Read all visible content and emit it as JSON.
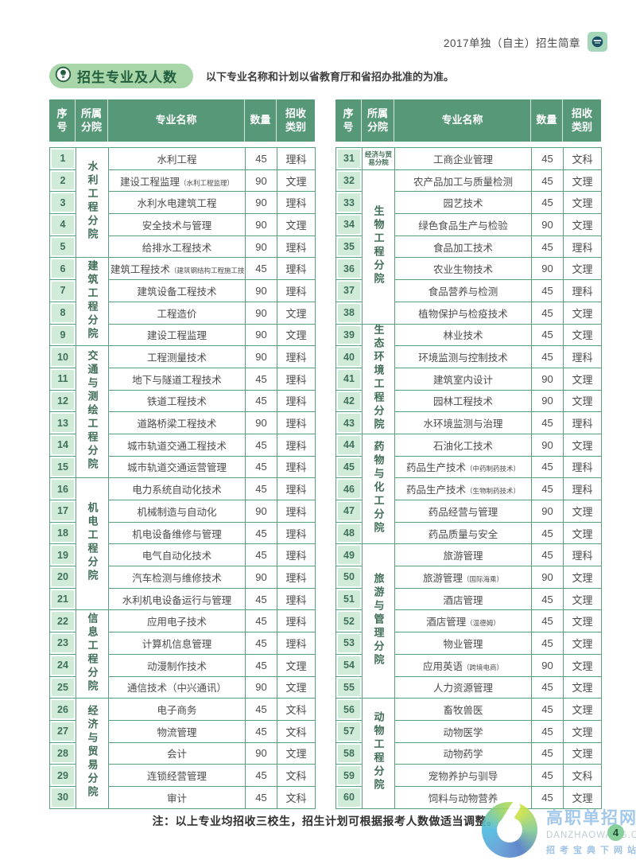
{
  "header": {
    "title": "2017单独（自主）招生简章"
  },
  "section": {
    "title": "招生专业及人数",
    "note": "以下专业名称和计划以省教育厅和省招办批准的为准。"
  },
  "table_headers": [
    "序\n号",
    "所属\n分院",
    "专业名称",
    "数量",
    "招收\n类别"
  ],
  "tables": [
    {
      "groups": [
        {
          "department": "水利工程分院",
          "rows": [
            {
              "no": "1",
              "major": "水利工程",
              "count": "45",
              "category": "理科"
            },
            {
              "no": "2",
              "major": "建设工程监理",
              "sub": "（水利工程监理）",
              "count": "90",
              "category": "文理"
            },
            {
              "no": "3",
              "major": "水利水电建筑工程",
              "count": "90",
              "category": "理科"
            },
            {
              "no": "4",
              "major": "安全技术与管理",
              "count": "90",
              "category": "文理"
            },
            {
              "no": "5",
              "major": "给排水工程技术",
              "count": "90",
              "category": "理科"
            }
          ]
        },
        {
          "department": "建筑工程分院",
          "rows": [
            {
              "no": "6",
              "major": "建筑工程技术",
              "sub": "（建筑钢结构工程施工技术）",
              "count": "45",
              "category": "理科"
            },
            {
              "no": "7",
              "major": "建筑设备工程技术",
              "count": "90",
              "category": "理科"
            },
            {
              "no": "8",
              "major": "工程造价",
              "count": "90",
              "category": "文理"
            },
            {
              "no": "9",
              "major": "建设工程监理",
              "count": "90",
              "category": "文理"
            }
          ]
        },
        {
          "department": "交通与测绘工程分院",
          "rows": [
            {
              "no": "10",
              "major": "工程测量技术",
              "count": "90",
              "category": "理科"
            },
            {
              "no": "11",
              "major": "地下与隧道工程技术",
              "count": "45",
              "category": "理科"
            },
            {
              "no": "12",
              "major": "铁道工程技术",
              "count": "45",
              "category": "理科"
            },
            {
              "no": "13",
              "major": "道路桥梁工程技术",
              "count": "90",
              "category": "理科"
            },
            {
              "no": "14",
              "major": "城市轨道交通工程技术",
              "count": "45",
              "category": "理科"
            },
            {
              "no": "15",
              "major": "城市轨道交通运营管理",
              "count": "45",
              "category": "理科"
            }
          ]
        },
        {
          "department": "机电工程分院",
          "rows": [
            {
              "no": "16",
              "major": "电力系统自动化技术",
              "count": "45",
              "category": "理科"
            },
            {
              "no": "17",
              "major": "机械制造与自动化",
              "count": "90",
              "category": "理科"
            },
            {
              "no": "18",
              "major": "机电设备维修与管理",
              "count": "45",
              "category": "理科"
            },
            {
              "no": "19",
              "major": "电气自动化技术",
              "count": "45",
              "category": "理科"
            },
            {
              "no": "20",
              "major": "汽车检测与维修技术",
              "count": "90",
              "category": "理科"
            },
            {
              "no": "21",
              "major": "水利机电设备运行与管理",
              "count": "45",
              "category": "理科"
            }
          ]
        },
        {
          "department": "信息工程分院",
          "rows": [
            {
              "no": "22",
              "major": "应用电子技术",
              "count": "45",
              "category": "理科"
            },
            {
              "no": "23",
              "major": "计算机信息管理",
              "count": "45",
              "category": "理科"
            },
            {
              "no": "24",
              "major": "动漫制作技术",
              "count": "45",
              "category": "文理"
            },
            {
              "no": "25",
              "major": "通信技术（中兴通讯）",
              "count": "90",
              "category": "文理"
            }
          ]
        },
        {
          "department": "经济与贸易分院",
          "rows": [
            {
              "no": "26",
              "major": "电子商务",
              "count": "45",
              "category": "文科"
            },
            {
              "no": "27",
              "major": "物流管理",
              "count": "45",
              "category": "文科"
            },
            {
              "no": "28",
              "major": "会计",
              "count": "90",
              "category": "文理"
            },
            {
              "no": "29",
              "major": "连锁经营管理",
              "count": "45",
              "category": "文科"
            },
            {
              "no": "30",
              "major": "审计",
              "count": "45",
              "category": "文科"
            }
          ]
        }
      ]
    },
    {
      "groups": [
        {
          "department": "经济与贸易分院",
          "compact": true,
          "rows": [
            {
              "no": "31",
              "major": "工商企业管理",
              "count": "45",
              "category": "文科"
            }
          ]
        },
        {
          "department": "生物工程分院",
          "rows": [
            {
              "no": "32",
              "major": "农产品加工与质量检测",
              "count": "45",
              "category": "文理"
            },
            {
              "no": "33",
              "major": "园艺技术",
              "count": "45",
              "category": "文理"
            },
            {
              "no": "34",
              "major": "绿色食品生产与检验",
              "count": "90",
              "category": "文理"
            },
            {
              "no": "35",
              "major": "食品加工技术",
              "count": "45",
              "category": "理科"
            },
            {
              "no": "36",
              "major": "农业生物技术",
              "count": "90",
              "category": "文理"
            },
            {
              "no": "37",
              "major": "食品营养与检测",
              "count": "45",
              "category": "理科"
            },
            {
              "no": "38",
              "major": "植物保护与检疫技术",
              "count": "45",
              "category": "文理"
            }
          ]
        },
        {
          "department": "生态环境工程分院",
          "rows": [
            {
              "no": "39",
              "major": "林业技术",
              "count": "45",
              "category": "文理"
            },
            {
              "no": "40",
              "major": "环境监测与控制技术",
              "count": "45",
              "category": "理科"
            },
            {
              "no": "41",
              "major": "建筑室内设计",
              "count": "90",
              "category": "文理"
            },
            {
              "no": "42",
              "major": "园林工程技术",
              "count": "90",
              "category": "文理"
            },
            {
              "no": "43",
              "major": "水环境监测与治理",
              "count": "45",
              "category": "理科"
            }
          ]
        },
        {
          "department": "药物与化工分院",
          "rows": [
            {
              "no": "44",
              "major": "石油化工技术",
              "count": "90",
              "category": "文理"
            },
            {
              "no": "45",
              "major": "药品生产技术",
              "sub": "（中药制药技术）",
              "count": "45",
              "category": "理科"
            },
            {
              "no": "46",
              "major": "药品生产技术",
              "sub": "（生物制药技术）",
              "count": "45",
              "category": "理科"
            },
            {
              "no": "47",
              "major": "药品经营与管理",
              "count": "90",
              "category": "文理"
            },
            {
              "no": "48",
              "major": "药品质量与安全",
              "count": "45",
              "category": "文理"
            }
          ]
        },
        {
          "department": "旅游与管理分院",
          "rows": [
            {
              "no": "49",
              "major": "旅游管理",
              "count": "45",
              "category": "理科"
            },
            {
              "no": "50",
              "major": "旅游管理",
              "sub": "（国际海乘）",
              "count": "90",
              "category": "文理"
            },
            {
              "no": "51",
              "major": "酒店管理",
              "count": "45",
              "category": "文理"
            },
            {
              "no": "52",
              "major": "酒店管理",
              "sub": "（温德姆）",
              "count": "45",
              "category": "文理"
            },
            {
              "no": "53",
              "major": "物业管理",
              "count": "45",
              "category": "文理"
            },
            {
              "no": "54",
              "major": "应用英语",
              "sub": "（跨境电商）",
              "count": "90",
              "category": "文理"
            },
            {
              "no": "55",
              "major": "人力资源管理",
              "count": "45",
              "category": "文理"
            }
          ]
        },
        {
          "department": "动物工程分院",
          "rows": [
            {
              "no": "56",
              "major": "畜牧兽医",
              "count": "45",
              "category": "文理"
            },
            {
              "no": "57",
              "major": "动物医学",
              "count": "45",
              "category": "文理"
            },
            {
              "no": "58",
              "major": "动物药学",
              "count": "45",
              "category": "文理"
            },
            {
              "no": "59",
              "major": "宠物养护与驯导",
              "count": "45",
              "category": "文科"
            },
            {
              "no": "60",
              "major": "饲料与动物营养",
              "count": "45",
              "category": "文理"
            }
          ]
        }
      ]
    }
  ],
  "footnote": "注：以上专业均招收三校生，招生计划可根据报考人数做适当调整。",
  "watermark": {
    "site_name": "高职单招网",
    "site_domain": "DANZHAOWANG.COM",
    "site_slogan": "招考宝典下网站",
    "page_number": "4"
  },
  "colors": {
    "header_green": "#579878",
    "cell_light_green": "#d0ebd7",
    "border_green": "#58a07e",
    "pill_green": "#a9d6a9",
    "pill_text_green": "#215e3e",
    "watermark_blue": "#a3c8e9",
    "page_badge_green": "#87cf9b"
  }
}
